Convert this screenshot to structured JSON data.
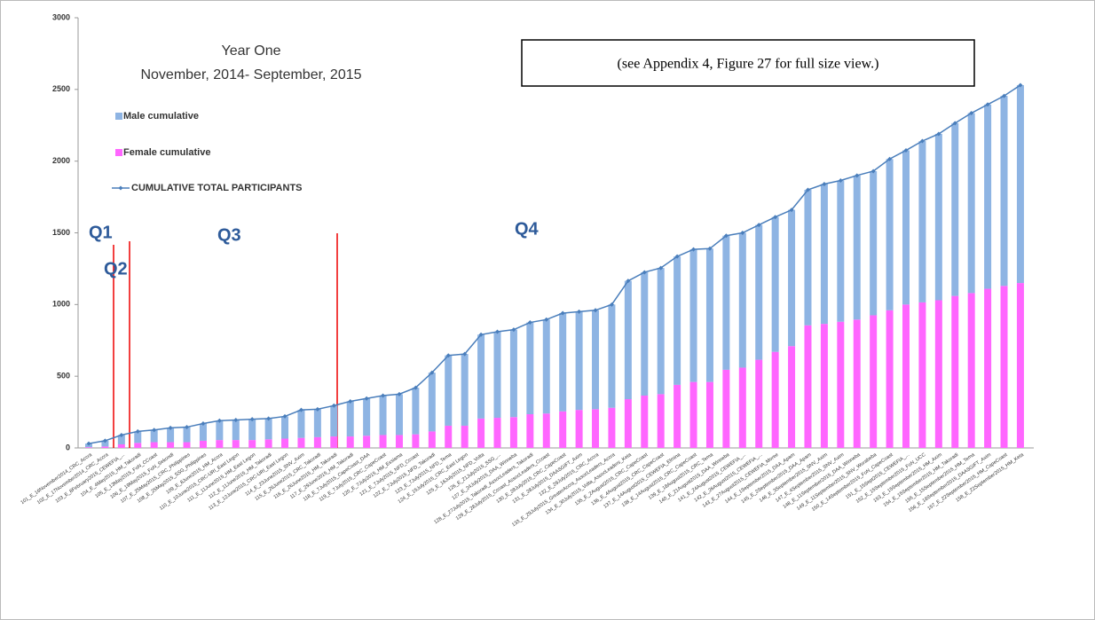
{
  "chart_data": {
    "type": "bar_line",
    "title": [
      "Year One",
      "November, 2014- September, 2015"
    ],
    "note": "(see Appendix 4, Figure 27 for full size view.)",
    "annotations": [
      "Q1",
      "Q2",
      "Q3",
      "Q4"
    ],
    "categories": [
      "101_E_16November2014_CRC_Accra",
      "102_E_17November2014_CRC_Accra",
      "103_E_8February2015_CEWEFIA_...",
      "104_E_4May2015_HM_Takoradi",
      "105_E_13May2015_FoN_CCoast",
      "106_E_19May2015_FoN_Sekondi",
      "107_E_25May2015_CRC_Philippines",
      "108_E_25May2015_SSG_Philippines",
      "109_E_8June2015_HM_Accra",
      "110_E_10June2015_CRC-URI_East Legon",
      "111_E_11June2015_HM_East Legon",
      "112_E_11June2015_HM_Takoradi",
      "113_E_12June2015_CRC-URI_East Legon",
      "114_E_23June2015_SNV_Axim",
      "115_E_26June2015_CRC_Takoradi",
      "116_E_26June2015_HM_Takoradi",
      "117_E_29June2015_HM_Takoradi",
      "118_E_7July2015_CapeCoast_DAA",
      "119_E_7July2015_CRC_CapeCoast",
      "120_E_7July2015_HM_Essiama",
      "121_E_7July2015_NFD_Ccoast",
      "122_E_7July2015_NFD_Takoradi",
      "123_E_7July2015_NFD_Tema",
      "124_E_15July2015_CRC_East Legon",
      "125_E_16July2015_NFD_Volta",
      "126_E_21July2015_SSG_...",
      "127_E_24July2015_DAA_Winneba",
      "128_E_27July2015_Takoradi_AssocLeaders_Takoradi",
      "129_E_28July2015_Ccoast_AssocLeaders_Ccoast",
      "130_E_28July2015_CRC_CapeCoast",
      "131_E_28July2015_DAASGIFT_Axim",
      "132_E_29July2015_CRC_Accra",
      "133_E_29July2015_GreaterAccra_AssocLeaders_Accra",
      "134_E_30July2015_Volta_AssocLeaders_Keta",
      "135_E_2August2015_CRC_CapeCoast",
      "136_E_4August2015_CRC_CapeCoast",
      "137_E_14August2015_CEWEFIA_Elmina",
      "138_E_14August2015_CRC_CapeCoast",
      "139_E_18August2015_CRC_Tema",
      "140_E_21August2015_DAA_Winneba",
      "141_E_24August2015_CEWEFIA_...",
      "142_E_26August2015_CEWEFIA_...",
      "143_E_27August2015_CEWEFIA_Moree",
      "144_E_1September2015_DAA_Apam",
      "145_E_2September2015_DAA_Apam",
      "146_E_3September2015_SNV_Axim",
      "147_E_4September2015_SNV_Axim",
      "148_E_11September2015_DAA_Winneba",
      "149_E_11September2015_SNV_Wurabeba",
      "150_E_14September2015_FoN_CapeCoast",
      "151_E_15Sept2015_CEWEFIA_...",
      "152_E_15September2015_FoN_UCC",
      "153_E_15September2015_HM_Axim",
      "154_E_15September2015_HM_Takoradi",
      "155_E_15September2015_HM_Tema",
      "156_E_18September2015_DAASGIFT_Axim",
      "157_E_22September2015_HM_CapeCoast",
      "158_E_22September2015_HM_Keta"
    ],
    "series": [
      {
        "name": "Female cumulative",
        "color": "#ff66ff",
        "kind": "bar",
        "values": [
          5,
          10,
          25,
          35,
          40,
          40,
          40,
          50,
          55,
          55,
          55,
          60,
          65,
          70,
          75,
          80,
          80,
          85,
          90,
          90,
          95,
          115,
          155,
          155,
          205,
          210,
          215,
          235,
          240,
          255,
          265,
          270,
          280,
          340,
          365,
          375,
          440,
          460,
          460,
          545,
          560,
          615,
          670,
          710,
          855,
          865,
          880,
          895,
          925,
          960,
          1000,
          1015,
          1030,
          1060,
          1080,
          1110,
          1130,
          1150
        ]
      },
      {
        "name": "Male cumulative",
        "color": "#8eb4e3",
        "kind": "bar",
        "values": [
          25,
          40,
          65,
          80,
          85,
          100,
          105,
          120,
          135,
          140,
          145,
          145,
          155,
          195,
          195,
          215,
          245,
          260,
          275,
          285,
          325,
          410,
          490,
          500,
          585,
          600,
          610,
          640,
          655,
          685,
          685,
          690,
          720,
          825,
          860,
          880,
          895,
          925,
          930,
          935,
          940,
          940,
          940,
          950,
          945,
          975,
          985,
          1005,
          1005,
          1055,
          1075,
          1125,
          1160,
          1205,
          1255,
          1285,
          1325,
          1380
        ]
      },
      {
        "name": "CUMULATIVE TOTAL PARTICIPANTS",
        "color": "#4a7ebb",
        "kind": "line",
        "values": [
          30,
          50,
          90,
          115,
          125,
          140,
          145,
          170,
          190,
          195,
          200,
          205,
          220,
          265,
          270,
          295,
          325,
          345,
          365,
          375,
          420,
          525,
          645,
          655,
          790,
          810,
          825,
          875,
          895,
          940,
          950,
          960,
          1000,
          1165,
          1225,
          1255,
          1335,
          1385,
          1390,
          1480,
          1500,
          1555,
          1610,
          1660,
          1800,
          1840,
          1865,
          1900,
          1930,
          2015,
          2075,
          2140,
          2190,
          2265,
          2335,
          2395,
          2455,
          2530
        ]
      }
    ],
    "ylim": [
      0,
      3000
    ],
    "yticks": [
      0,
      500,
      1000,
      1500,
      2000,
      2500,
      3000
    ],
    "grid": false
  }
}
